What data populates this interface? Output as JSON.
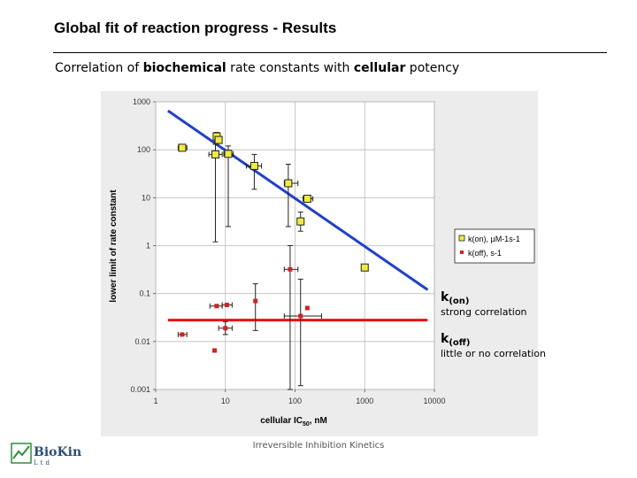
{
  "slide": {
    "title": "Global fit of reaction progress - Results",
    "subtitle_parts": [
      "Correlation of ",
      "biochemical",
      " rate constants with ",
      "cellular",
      " potency"
    ],
    "footer": "Irreversible Inhibition Kinetics",
    "logo_text": "BioKin",
    "logo_sub": "Ltd"
  },
  "annotations": {
    "kon_label": "k",
    "kon_sub": "(on)",
    "kon_note": "strong correlation",
    "koff_label": "k",
    "koff_sub": "(off)",
    "koff_note": "little or no correlation"
  },
  "colors": {
    "kon_marker": "#f2ea3c",
    "koff_marker": "#d62020",
    "kon_line": "#1f3fd0",
    "koff_line": "#e81010",
    "plot_bg": "#ececec"
  },
  "chart_data": {
    "type": "scatter",
    "xlabel": "cellular IC",
    "xlabel_sub": "50",
    "xlabel_suffix": ", nM",
    "ylabel": "lower limit of rate constant",
    "x_scale": "log",
    "y_scale": "log",
    "xlim": [
      1,
      10000
    ],
    "ylim": [
      0.001,
      1000
    ],
    "x_ticks": [
      1,
      10,
      100,
      1000,
      10000
    ],
    "x_tick_labels": [
      "1",
      "10",
      "100",
      "1000",
      "10000"
    ],
    "y_ticks": [
      0.001,
      0.01,
      0.1,
      1,
      10,
      100,
      1000
    ],
    "y_tick_labels": [
      "0.001",
      "0.01",
      "0.1",
      "1",
      "10",
      "100",
      "1000"
    ],
    "legend": [
      "k(on), µM-1s-1",
      "k(off), s-1"
    ],
    "legend_position": "right",
    "series": [
      {
        "name": "k(on), µM-1s-1",
        "marker": "square",
        "points": [
          {
            "x": 2.4,
            "y": 110,
            "xerr": [
              2.1,
              2.8
            ]
          },
          {
            "x": 7.5,
            "y": 190,
            "yerr": [
              150,
              230
            ]
          },
          {
            "x": 8.0,
            "y": 160
          },
          {
            "x": 7.2,
            "y": 80,
            "xerr": [
              5.8,
              9.0
            ],
            "yerr": [
              1.2,
              130
            ]
          },
          {
            "x": 11,
            "y": 82,
            "xerr": [
              9.5,
              13
            ],
            "yerr": [
              2.5,
              120
            ]
          },
          {
            "x": 26,
            "y": 46,
            "xerr": [
              20,
              33
            ],
            "yerr": [
              15,
              80
            ]
          },
          {
            "x": 80,
            "y": 20,
            "xerr": [
              70,
              110
            ],
            "yerr": [
              2.5,
              50
            ]
          },
          {
            "x": 150,
            "y": 9.5,
            "xerr": [
              130,
              180
            ]
          },
          {
            "x": 120,
            "y": 3.2,
            "yerr": [
              2,
              5
            ]
          },
          {
            "x": 1000,
            "y": 0.35
          }
        ]
      },
      {
        "name": "k(off), s-1",
        "marker": "square-small",
        "points": [
          {
            "x": 2.4,
            "y": 0.014,
            "xerr": [
              2.1,
              2.8
            ]
          },
          {
            "x": 7.0,
            "y": 0.0065
          },
          {
            "x": 7.5,
            "y": 0.055,
            "xerr": [
              6,
              9
            ]
          },
          {
            "x": 10.5,
            "y": 0.058,
            "xerr": [
              9,
              12.5
            ]
          },
          {
            "x": 10,
            "y": 0.019,
            "xerr": [
              8,
              12.5
            ],
            "yerr": [
              0.014,
              0.026
            ]
          },
          {
            "x": 27,
            "y": 0.07,
            "yerr": [
              0.017,
              0.16
            ]
          },
          {
            "x": 85,
            "y": 0.32,
            "xerr": [
              70,
              110
            ],
            "yerr": [
              0.001,
              1.0
            ]
          },
          {
            "x": 120,
            "y": 0.034,
            "xerr": [
              70,
              240
            ],
            "yerr": [
              0.0012,
              0.2
            ]
          },
          {
            "x": 150,
            "y": 0.05
          }
        ]
      }
    ],
    "fit_lines": [
      {
        "series": "k(on)",
        "x": [
          1.5,
          8000
        ],
        "y": [
          650,
          0.12
        ]
      },
      {
        "series": "k(off)",
        "x": [
          1.5,
          8000
        ],
        "y": [
          0.028,
          0.028
        ]
      }
    ]
  }
}
